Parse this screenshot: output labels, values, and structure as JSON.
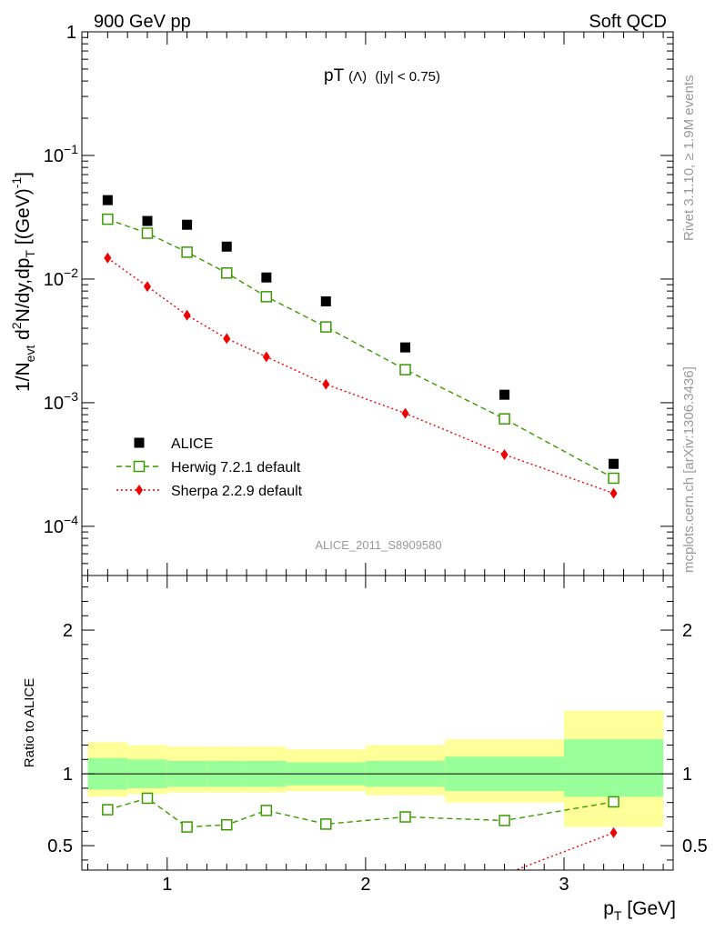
{
  "header": {
    "left": "900 GeV pp",
    "right": "Soft QCD"
  },
  "side": {
    "rivet": "Rivet 3.1.10, ≥ 1.9M events",
    "mcplots": "mcplots.cern.ch [arXiv:1306.3436]"
  },
  "main_title": {
    "main": "pT",
    "paren": "(Λ)",
    "cut": "(|y| < 0.75)"
  },
  "ylabel": {
    "a": "1/N",
    "a_sub": "evt",
    "b": " d",
    "b_sup": "2",
    "c": "N/dy,dp",
    "c_sub": "T",
    "d": " [(GeV)",
    "d_sup": "-1",
    "e": "]"
  },
  "analysis_id": "ALICE_2011_S8909580",
  "ratio_ylabel": "Ratio to ALICE",
  "xlabel": {
    "main": "p",
    "sub": "T",
    "unit": " [GeV]"
  },
  "chart_data": {
    "type": "scatter",
    "x_range": [
      0.57,
      3.55
    ],
    "x_ticks": [
      {
        "v": 1,
        "label": "1"
      },
      {
        "v": 2,
        "label": "2"
      },
      {
        "v": 3,
        "label": "3"
      }
    ],
    "main_y": {
      "scale": "log",
      "range": [
        4e-05,
        1
      ],
      "ticks": [
        {
          "v": 1,
          "base": "1",
          "exp": ""
        },
        {
          "v": 0.1,
          "base": "10",
          "exp": "−1"
        },
        {
          "v": 0.01,
          "base": "10",
          "exp": "−2"
        },
        {
          "v": 0.001,
          "base": "10",
          "exp": "−3"
        },
        {
          "v": 0.0001,
          "base": "10",
          "exp": "−4"
        }
      ]
    },
    "ratio_y": {
      "scale": "linear",
      "range": [
        0.33,
        2.38
      ],
      "ticks": [
        {
          "v": 0.5,
          "label": "0.5"
        },
        {
          "v": 1,
          "label": "1"
        },
        {
          "v": 2,
          "label": "2"
        }
      ]
    },
    "bins": [
      {
        "x": 0.7,
        "lo": 0.6,
        "hi": 0.8
      },
      {
        "x": 0.9,
        "lo": 0.8,
        "hi": 1.0
      },
      {
        "x": 1.1,
        "lo": 1.0,
        "hi": 1.2
      },
      {
        "x": 1.3,
        "lo": 1.2,
        "hi": 1.4
      },
      {
        "x": 1.5,
        "lo": 1.4,
        "hi": 1.6
      },
      {
        "x": 1.8,
        "lo": 1.6,
        "hi": 2.0
      },
      {
        "x": 2.2,
        "lo": 2.0,
        "hi": 2.4
      },
      {
        "x": 2.7,
        "lo": 2.4,
        "hi": 3.0
      },
      {
        "x": 3.25,
        "lo": 3.0,
        "hi": 3.5
      }
    ],
    "band_inner": [
      [
        0.89,
        1.11
      ],
      [
        0.9,
        1.1
      ],
      [
        0.91,
        1.09
      ],
      [
        0.91,
        1.09
      ],
      [
        0.91,
        1.09
      ],
      [
        0.92,
        1.08
      ],
      [
        0.91,
        1.09
      ],
      [
        0.88,
        1.12
      ],
      [
        0.84,
        1.24
      ]
    ],
    "band_outer": [
      [
        0.84,
        1.22
      ],
      [
        0.86,
        1.2
      ],
      [
        0.87,
        1.19
      ],
      [
        0.87,
        1.19
      ],
      [
        0.87,
        1.19
      ],
      [
        0.88,
        1.17
      ],
      [
        0.85,
        1.2
      ],
      [
        0.8,
        1.24
      ],
      [
        0.63,
        1.44
      ]
    ],
    "series": [
      {
        "name": "ALICE",
        "key": "alice",
        "color": "#000000",
        "marker": "square-filled",
        "values": [
          0.0435,
          0.0295,
          0.0275,
          0.0183,
          0.0103,
          0.0066,
          0.0028,
          0.00116,
          0.00032
        ]
      },
      {
        "name": "Herwig 7.2.1 default",
        "key": "herwig",
        "color": "#3a9a00",
        "marker": "square-open",
        "line": "dashed",
        "values": [
          0.0305,
          0.0235,
          0.0165,
          0.0112,
          0.0072,
          0.0041,
          0.00185,
          0.00074,
          0.000245
        ],
        "ratio": [
          0.75,
          0.83,
          0.63,
          0.645,
          0.745,
          0.65,
          0.7,
          0.675,
          0.805
        ],
        "ratio_err": [
          0,
          0,
          0,
          0,
          0,
          0,
          0,
          0,
          0.04
        ]
      },
      {
        "name": "Sherpa 2.2.9 default",
        "key": "sherpa",
        "color": "#ee0000",
        "marker": "diamond-filled",
        "line": "dotted",
        "values": [
          0.0148,
          0.0087,
          0.0051,
          0.0033,
          0.00235,
          0.00141,
          0.00082,
          0.00038,
          0.000185
        ],
        "ratio": [
          null,
          null,
          null,
          null,
          null,
          null,
          null,
          0.3,
          0.59
        ],
        "ratio_err": [
          0,
          0,
          0,
          0,
          0,
          0,
          0,
          0,
          0.025
        ]
      }
    ]
  },
  "colors": {
    "band_inner": "#99ff99",
    "band_outer": "#ffff99"
  }
}
